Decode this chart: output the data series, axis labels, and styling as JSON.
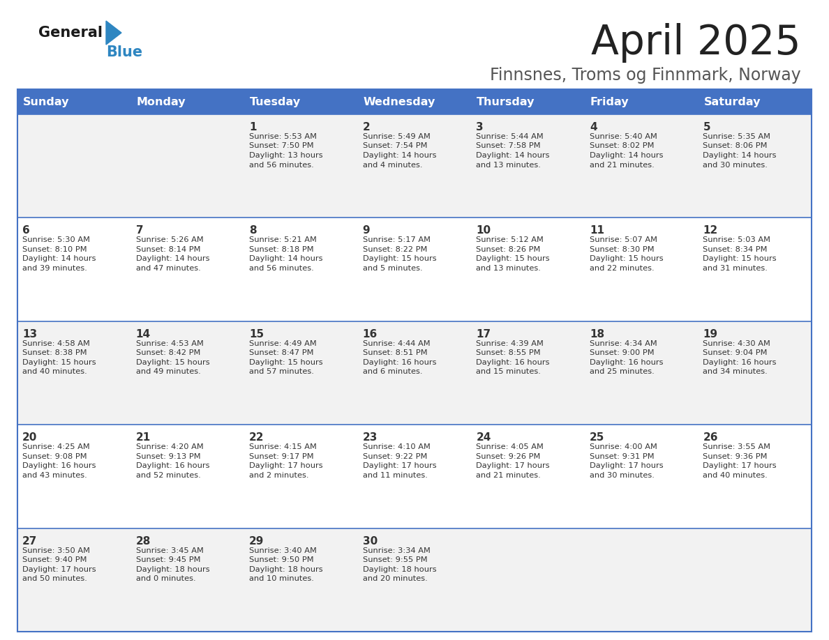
{
  "title": "April 2025",
  "subtitle": "Finnsnes, Troms og Finnmark, Norway",
  "days_of_week": [
    "Sunday",
    "Monday",
    "Tuesday",
    "Wednesday",
    "Thursday",
    "Friday",
    "Saturday"
  ],
  "header_bg": "#4472C4",
  "header_text": "#FFFFFF",
  "cell_bg_odd": "#F2F2F2",
  "cell_bg_even": "#FFFFFF",
  "border_color": "#4472C4",
  "title_color": "#222222",
  "subtitle_color": "#555555",
  "day_number_color": "#333333",
  "cell_text_color": "#333333",
  "logo_general_color": "#1a1a1a",
  "logo_blue_color": "#2E86C1",
  "calendar": [
    [
      {
        "day": "",
        "sunrise": "",
        "sunset": "",
        "daylight": ""
      },
      {
        "day": "",
        "sunrise": "",
        "sunset": "",
        "daylight": ""
      },
      {
        "day": "1",
        "sunrise": "Sunrise: 5:53 AM",
        "sunset": "Sunset: 7:50 PM",
        "daylight": "Daylight: 13 hours\nand 56 minutes."
      },
      {
        "day": "2",
        "sunrise": "Sunrise: 5:49 AM",
        "sunset": "Sunset: 7:54 PM",
        "daylight": "Daylight: 14 hours\nand 4 minutes."
      },
      {
        "day": "3",
        "sunrise": "Sunrise: 5:44 AM",
        "sunset": "Sunset: 7:58 PM",
        "daylight": "Daylight: 14 hours\nand 13 minutes."
      },
      {
        "day": "4",
        "sunrise": "Sunrise: 5:40 AM",
        "sunset": "Sunset: 8:02 PM",
        "daylight": "Daylight: 14 hours\nand 21 minutes."
      },
      {
        "day": "5",
        "sunrise": "Sunrise: 5:35 AM",
        "sunset": "Sunset: 8:06 PM",
        "daylight": "Daylight: 14 hours\nand 30 minutes."
      }
    ],
    [
      {
        "day": "6",
        "sunrise": "Sunrise: 5:30 AM",
        "sunset": "Sunset: 8:10 PM",
        "daylight": "Daylight: 14 hours\nand 39 minutes."
      },
      {
        "day": "7",
        "sunrise": "Sunrise: 5:26 AM",
        "sunset": "Sunset: 8:14 PM",
        "daylight": "Daylight: 14 hours\nand 47 minutes."
      },
      {
        "day": "8",
        "sunrise": "Sunrise: 5:21 AM",
        "sunset": "Sunset: 8:18 PM",
        "daylight": "Daylight: 14 hours\nand 56 minutes."
      },
      {
        "day": "9",
        "sunrise": "Sunrise: 5:17 AM",
        "sunset": "Sunset: 8:22 PM",
        "daylight": "Daylight: 15 hours\nand 5 minutes."
      },
      {
        "day": "10",
        "sunrise": "Sunrise: 5:12 AM",
        "sunset": "Sunset: 8:26 PM",
        "daylight": "Daylight: 15 hours\nand 13 minutes."
      },
      {
        "day": "11",
        "sunrise": "Sunrise: 5:07 AM",
        "sunset": "Sunset: 8:30 PM",
        "daylight": "Daylight: 15 hours\nand 22 minutes."
      },
      {
        "day": "12",
        "sunrise": "Sunrise: 5:03 AM",
        "sunset": "Sunset: 8:34 PM",
        "daylight": "Daylight: 15 hours\nand 31 minutes."
      }
    ],
    [
      {
        "day": "13",
        "sunrise": "Sunrise: 4:58 AM",
        "sunset": "Sunset: 8:38 PM",
        "daylight": "Daylight: 15 hours\nand 40 minutes."
      },
      {
        "day": "14",
        "sunrise": "Sunrise: 4:53 AM",
        "sunset": "Sunset: 8:42 PM",
        "daylight": "Daylight: 15 hours\nand 49 minutes."
      },
      {
        "day": "15",
        "sunrise": "Sunrise: 4:49 AM",
        "sunset": "Sunset: 8:47 PM",
        "daylight": "Daylight: 15 hours\nand 57 minutes."
      },
      {
        "day": "16",
        "sunrise": "Sunrise: 4:44 AM",
        "sunset": "Sunset: 8:51 PM",
        "daylight": "Daylight: 16 hours\nand 6 minutes."
      },
      {
        "day": "17",
        "sunrise": "Sunrise: 4:39 AM",
        "sunset": "Sunset: 8:55 PM",
        "daylight": "Daylight: 16 hours\nand 15 minutes."
      },
      {
        "day": "18",
        "sunrise": "Sunrise: 4:34 AM",
        "sunset": "Sunset: 9:00 PM",
        "daylight": "Daylight: 16 hours\nand 25 minutes."
      },
      {
        "day": "19",
        "sunrise": "Sunrise: 4:30 AM",
        "sunset": "Sunset: 9:04 PM",
        "daylight": "Daylight: 16 hours\nand 34 minutes."
      }
    ],
    [
      {
        "day": "20",
        "sunrise": "Sunrise: 4:25 AM",
        "sunset": "Sunset: 9:08 PM",
        "daylight": "Daylight: 16 hours\nand 43 minutes."
      },
      {
        "day": "21",
        "sunrise": "Sunrise: 4:20 AM",
        "sunset": "Sunset: 9:13 PM",
        "daylight": "Daylight: 16 hours\nand 52 minutes."
      },
      {
        "day": "22",
        "sunrise": "Sunrise: 4:15 AM",
        "sunset": "Sunset: 9:17 PM",
        "daylight": "Daylight: 17 hours\nand 2 minutes."
      },
      {
        "day": "23",
        "sunrise": "Sunrise: 4:10 AM",
        "sunset": "Sunset: 9:22 PM",
        "daylight": "Daylight: 17 hours\nand 11 minutes."
      },
      {
        "day": "24",
        "sunrise": "Sunrise: 4:05 AM",
        "sunset": "Sunset: 9:26 PM",
        "daylight": "Daylight: 17 hours\nand 21 minutes."
      },
      {
        "day": "25",
        "sunrise": "Sunrise: 4:00 AM",
        "sunset": "Sunset: 9:31 PM",
        "daylight": "Daylight: 17 hours\nand 30 minutes."
      },
      {
        "day": "26",
        "sunrise": "Sunrise: 3:55 AM",
        "sunset": "Sunset: 9:36 PM",
        "daylight": "Daylight: 17 hours\nand 40 minutes."
      }
    ],
    [
      {
        "day": "27",
        "sunrise": "Sunrise: 3:50 AM",
        "sunset": "Sunset: 9:40 PM",
        "daylight": "Daylight: 17 hours\nand 50 minutes."
      },
      {
        "day": "28",
        "sunrise": "Sunrise: 3:45 AM",
        "sunset": "Sunset: 9:45 PM",
        "daylight": "Daylight: 18 hours\nand 0 minutes."
      },
      {
        "day": "29",
        "sunrise": "Sunrise: 3:40 AM",
        "sunset": "Sunset: 9:50 PM",
        "daylight": "Daylight: 18 hours\nand 10 minutes."
      },
      {
        "day": "30",
        "sunrise": "Sunrise: 3:34 AM",
        "sunset": "Sunset: 9:55 PM",
        "daylight": "Daylight: 18 hours\nand 20 minutes."
      },
      {
        "day": "",
        "sunrise": "",
        "sunset": "",
        "daylight": ""
      },
      {
        "day": "",
        "sunrise": "",
        "sunset": "",
        "daylight": ""
      },
      {
        "day": "",
        "sunrise": "",
        "sunset": "",
        "daylight": ""
      }
    ]
  ]
}
